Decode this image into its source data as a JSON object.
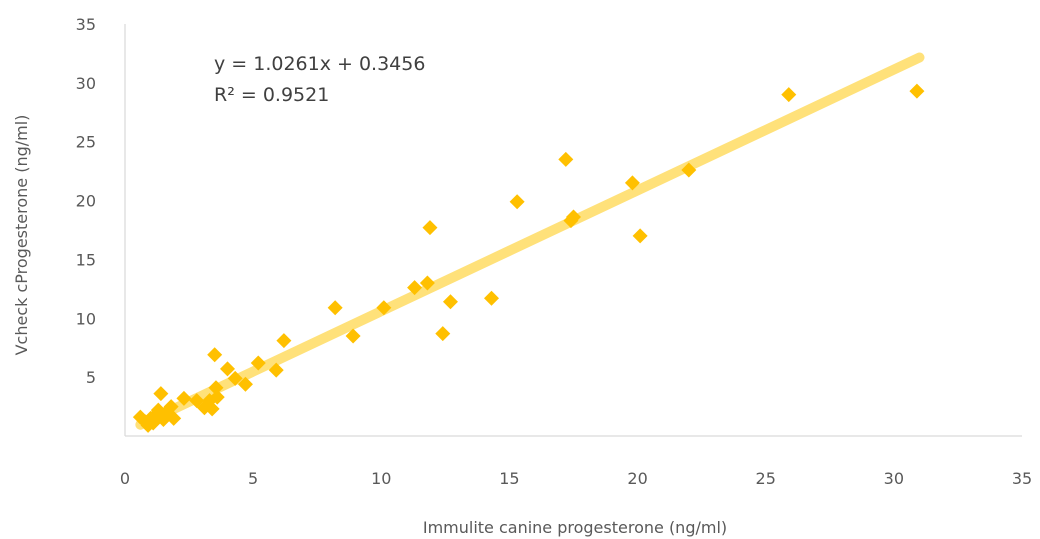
{
  "chart_data": {
    "type": "scatter",
    "title": "",
    "xlabel": "Immulite canine progesterone (ng/ml)",
    "ylabel": "Vcheck cProgesterone (ng/ml)",
    "xlim": [
      0,
      35
    ],
    "ylim": [
      0,
      35
    ],
    "x_ticks": [
      "0",
      "5",
      "10",
      "15",
      "20",
      "25",
      "30",
      "35"
    ],
    "y_ticks": [
      "5",
      "10",
      "15",
      "20",
      "25",
      "30",
      "35"
    ],
    "grid": false,
    "legend": "none",
    "marker": "diamond",
    "marker_color": "#FFC000",
    "trendline": {
      "type": "linear",
      "slope": 1.0261,
      "intercept": 0.3456,
      "x_range": [
        0.6,
        31
      ],
      "color": "#FFE17A",
      "equation_label": "y = 1.0261x + 0.3456",
      "r2_label": "R² = 0.9521"
    },
    "points": [
      [
        0.6,
        1.6
      ],
      [
        0.8,
        1.2
      ],
      [
        0.9,
        0.9
      ],
      [
        1.0,
        1.5
      ],
      [
        1.1,
        1.1
      ],
      [
        1.2,
        1.8
      ],
      [
        1.3,
        2.2
      ],
      [
        1.4,
        3.6
      ],
      [
        1.5,
        1.4
      ],
      [
        1.6,
        2.0
      ],
      [
        1.7,
        1.9
      ],
      [
        1.8,
        2.5
      ],
      [
        1.9,
        1.5
      ],
      [
        2.3,
        3.2
      ],
      [
        2.8,
        3.0
      ],
      [
        3.1,
        2.4
      ],
      [
        3.3,
        3.0
      ],
      [
        3.4,
        2.3
      ],
      [
        3.5,
        6.9
      ],
      [
        3.55,
        4.1
      ],
      [
        3.6,
        3.3
      ],
      [
        4.0,
        5.7
      ],
      [
        4.3,
        4.9
      ],
      [
        4.7,
        4.4
      ],
      [
        5.2,
        6.2
      ],
      [
        5.9,
        5.6
      ],
      [
        6.2,
        8.1
      ],
      [
        8.2,
        10.9
      ],
      [
        8.9,
        8.5
      ],
      [
        10.1,
        10.9
      ],
      [
        11.3,
        12.6
      ],
      [
        11.8,
        13.0
      ],
      [
        11.9,
        17.7
      ],
      [
        12.4,
        8.7
      ],
      [
        12.7,
        11.4
      ],
      [
        14.3,
        11.7
      ],
      [
        15.3,
        19.9
      ],
      [
        17.2,
        23.5
      ],
      [
        17.4,
        18.3
      ],
      [
        17.5,
        18.6
      ],
      [
        19.8,
        21.5
      ],
      [
        20.1,
        17.0
      ],
      [
        22.0,
        22.6
      ],
      [
        25.9,
        29.0
      ],
      [
        30.9,
        29.3
      ]
    ]
  }
}
